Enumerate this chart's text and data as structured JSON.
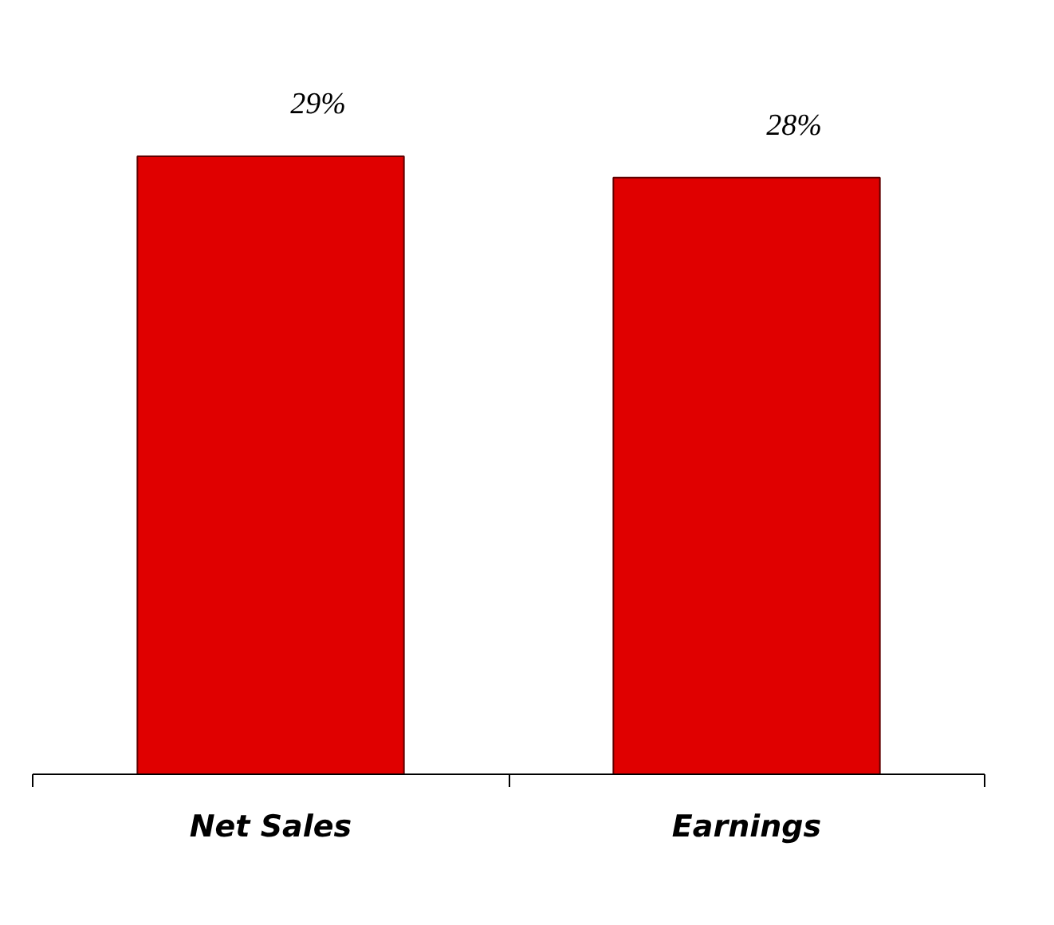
{
  "chart_data": {
    "type": "bar",
    "categories": [
      "Net Sales",
      "Earnings"
    ],
    "values": [
      29,
      28
    ],
    "value_labels": [
      "29%",
      "28%"
    ],
    "color": "#e00000",
    "grid": false,
    "tick_labels": "x"
  }
}
